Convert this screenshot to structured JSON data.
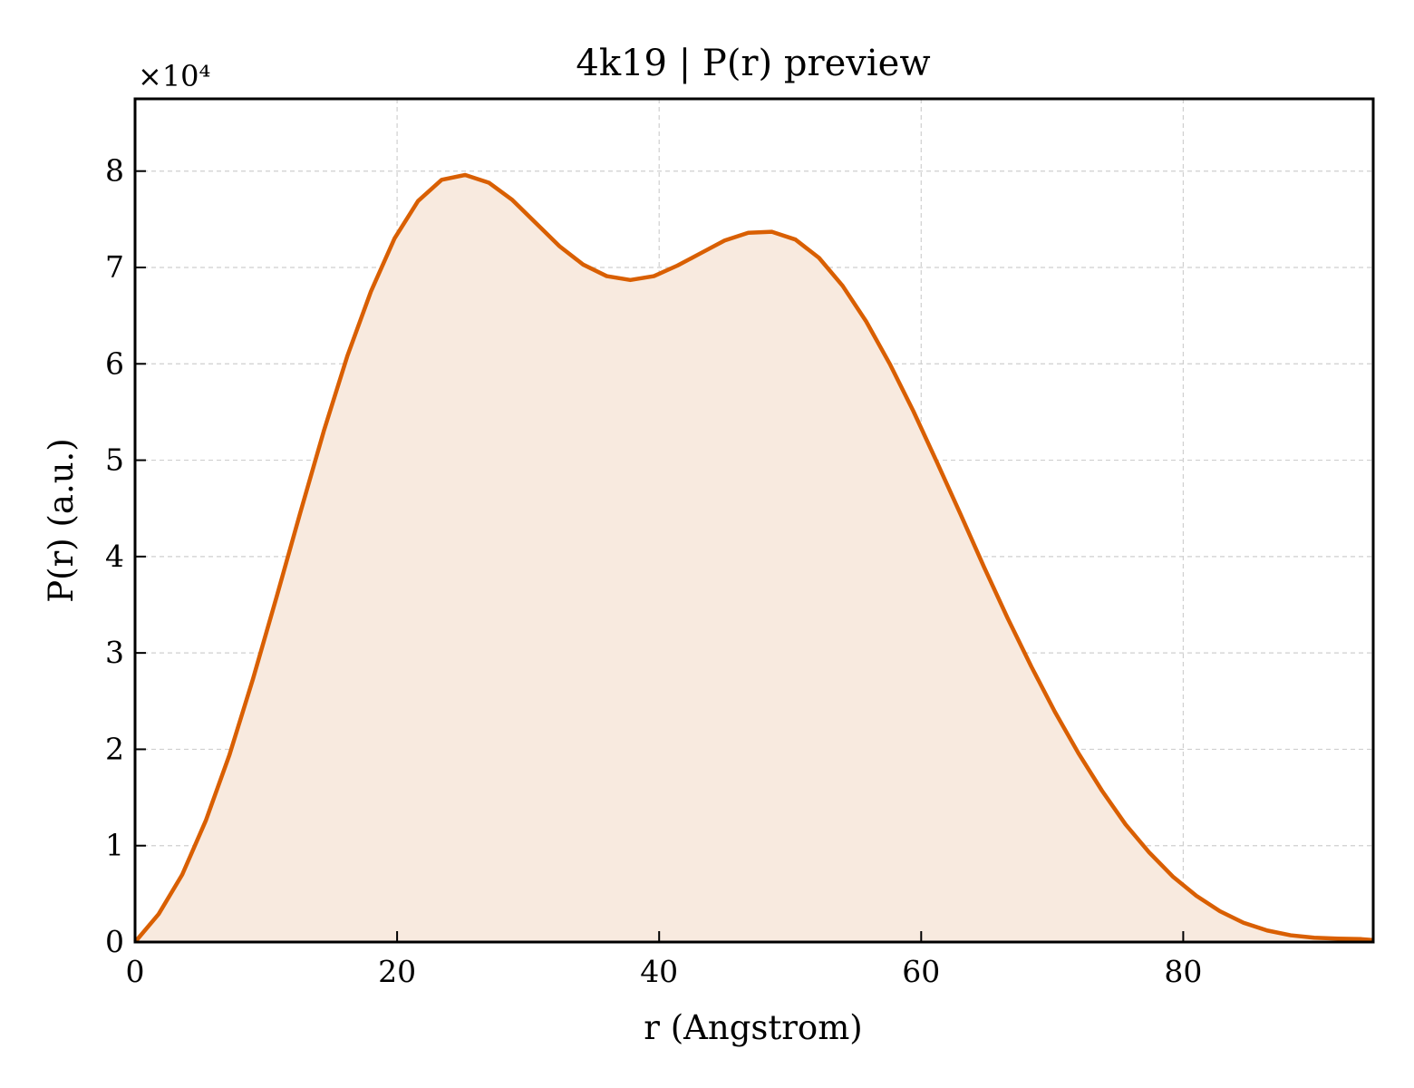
{
  "chart_data": {
    "type": "area",
    "title": "4k19 | P(r) preview",
    "xlabel": "r (Angstrom)",
    "ylabel": "P(r) (a.u.)",
    "y_multiplier": "×10⁴",
    "xlim": [
      0,
      94.5
    ],
    "ylim": [
      0,
      87500
    ],
    "x_ticks": [
      0,
      20,
      40,
      60,
      80
    ],
    "x_tick_labels": [
      "0",
      "20",
      "40",
      "60",
      "80"
    ],
    "y_ticks": [
      0,
      10000,
      20000,
      30000,
      40000,
      50000,
      60000,
      70000,
      80000
    ],
    "y_tick_labels": [
      "0",
      "1",
      "2",
      "3",
      "4",
      "5",
      "6",
      "7",
      "8"
    ],
    "grid": true,
    "colors": {
      "line": "#d95f02",
      "fill": "#f8eadf"
    },
    "series": [
      {
        "x": [
          0,
          1.8,
          3.6,
          5.4,
          7.2,
          9.0,
          10.8,
          12.6,
          14.4,
          16.2,
          18.0,
          19.8,
          21.6,
          23.4,
          25.2,
          27.0,
          28.8,
          30.6,
          32.4,
          34.2,
          36.0,
          37.8,
          39.6,
          41.4,
          43.2,
          45.0,
          46.8,
          48.6,
          50.4,
          52.2,
          54.0,
          55.8,
          57.6,
          59.4,
          61.2,
          63.0,
          64.8,
          66.6,
          68.4,
          70.2,
          72.0,
          73.8,
          75.6,
          77.4,
          79.2,
          81.0,
          82.8,
          84.6,
          86.4,
          88.2,
          90.0,
          91.8,
          93.6,
          94.5
        ],
        "y": [
          0,
          2900,
          7000,
          12600,
          19400,
          27300,
          35800,
          44500,
          53000,
          60800,
          67500,
          73000,
          76900,
          79100,
          79600,
          78800,
          77000,
          74600,
          72200,
          70300,
          69100,
          68700,
          69100,
          70200,
          71500,
          72800,
          73600,
          73700,
          72900,
          71000,
          68100,
          64400,
          60000,
          55100,
          49800,
          44400,
          38900,
          33600,
          28600,
          23900,
          19600,
          15700,
          12200,
          9300,
          6800,
          4800,
          3200,
          2000,
          1200,
          700,
          450,
          350,
          300,
          200
        ]
      }
    ]
  }
}
